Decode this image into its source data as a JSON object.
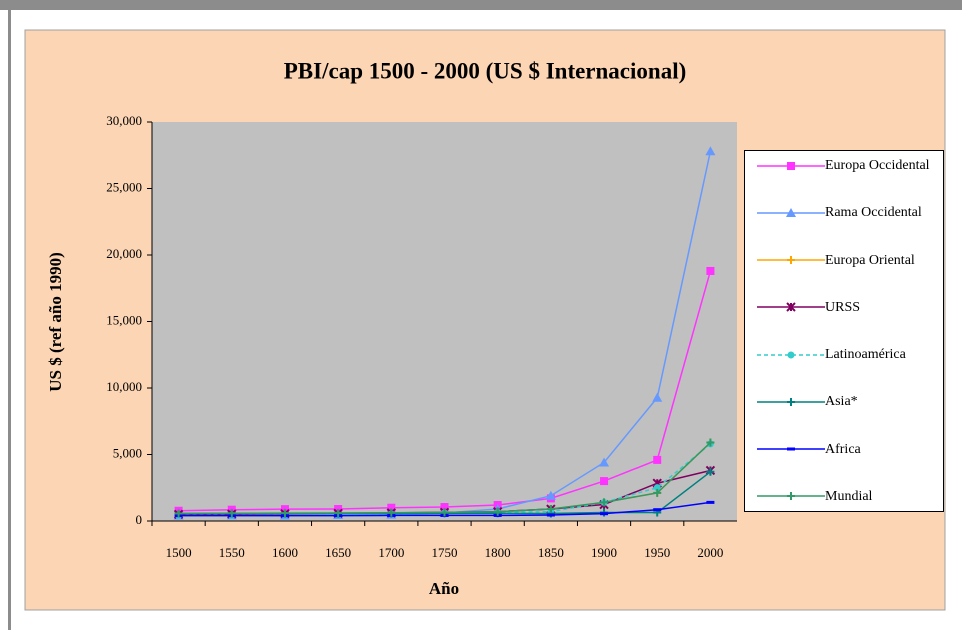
{
  "chart_data": {
    "type": "line",
    "title": "PBI/cap 1500 - 2000 (US $ Internacional)",
    "y_label": "US $ (ref año 1990)",
    "x_label": "Año",
    "categories": [
      "1500",
      "1550",
      "1600",
      "1650",
      "1700",
      "1750",
      "1800",
      "1850",
      "1900",
      "1950",
      "2000"
    ],
    "ylim": [
      0,
      30000
    ],
    "yticks": [
      0,
      {
        "value": 5000,
        "label": "5,000"
      },
      {
        "value": 10000,
        "label": "10,000"
      },
      {
        "value": 15000,
        "label": "15,000"
      },
      {
        "value": 20000,
        "label": "20,000"
      },
      {
        "value": 25000,
        "label": "25,000"
      },
      {
        "value": 30000,
        "label": "30,000"
      }
    ],
    "series": [
      {
        "name": "Europa Occidental",
        "color": "#ff33ff",
        "marker": "square",
        "values": [
          771,
          850,
          890,
          900,
          998,
          1050,
          1200,
          1700,
          3000,
          4594,
          18800
        ]
      },
      {
        "name": "Rama Occidental",
        "color": "#6699ff",
        "marker": "triangle",
        "values": [
          400,
          420,
          400,
          450,
          476,
          600,
          900,
          1900,
          4400,
          9268,
          27800
        ]
      },
      {
        "name": "Europa Oriental",
        "color": "#ffa500",
        "marker": "plus",
        "values": [
          496,
          520,
          548,
          580,
          606,
          650,
          700,
          900,
          1400,
          2111,
          5900
        ]
      },
      {
        "name": "URSS",
        "color": "#800060",
        "marker": "star",
        "values": [
          499,
          520,
          552,
          580,
          610,
          650,
          700,
          900,
          1237,
          2841,
          3800
        ]
      },
      {
        "name": "Latinoamérica",
        "color": "#33cccc",
        "marker": "circle",
        "dashed": true,
        "values": [
          416,
          420,
          437,
          450,
          529,
          600,
          650,
          700,
          1400,
          2506,
          5800
        ]
      },
      {
        "name": "Asia*",
        "color": "#008080",
        "marker": "plus",
        "values": [
          568,
          570,
          574,
          570,
          572,
          570,
          580,
          560,
          640,
          635,
          3700
        ]
      },
      {
        "name": "Africa",
        "color": "#0000ff",
        "marker": "dash",
        "values": [
          400,
          400,
          400,
          400,
          421,
          420,
          420,
          450,
          550,
          850,
          1400
        ]
      },
      {
        "name": "Mundial",
        "color": "#339966",
        "marker": "plus",
        "values": [
          566,
          580,
          596,
          600,
          616,
          650,
          700,
          900,
          1400,
          2113,
          5900
        ]
      }
    ]
  }
}
